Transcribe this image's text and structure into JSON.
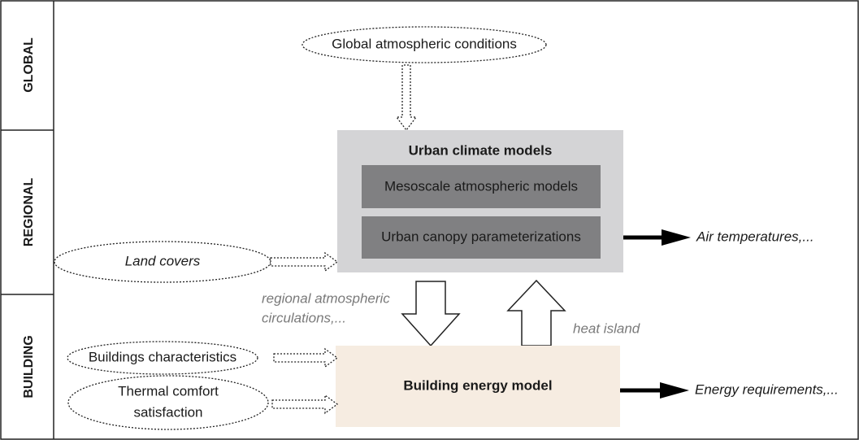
{
  "levels": [
    "GLOBAL",
    "REGIONAL",
    "BUILDING"
  ],
  "inputs": {
    "global": "Global atmospheric conditions",
    "land": "Land covers",
    "buildings": "Buildings characteristics",
    "comfort": [
      "Thermal comfort",
      "satisfaction"
    ]
  },
  "urban_climate": {
    "title": "Urban climate models",
    "parts": [
      "Mesoscale atmospheric models",
      "Urban canopy parameterizations"
    ]
  },
  "building_model": "Building energy model",
  "outputs": {
    "urban": "Air temperatures,...",
    "building": "Energy requirements,..."
  },
  "exchanges": {
    "down": [
      "regional atmospheric",
      "circulations,..."
    ],
    "up": "heat island"
  }
}
